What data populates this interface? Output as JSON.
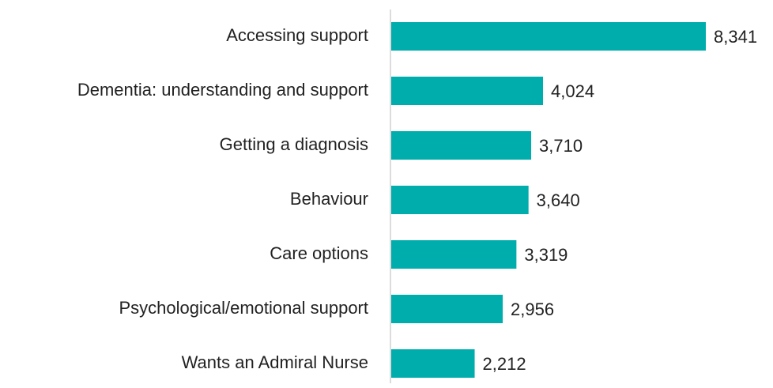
{
  "chart_data": {
    "type": "bar",
    "orientation": "horizontal",
    "categories": [
      "Accessing support",
      "Dementia: understanding and support",
      "Getting a diagnosis",
      "Behaviour",
      "Care options",
      "Psychological/emotional support",
      "Wants an Admiral Nurse"
    ],
    "values": [
      8341,
      4024,
      3710,
      3640,
      3319,
      2956,
      2212
    ],
    "value_labels": [
      "8,341",
      "4,024",
      "3,710",
      "3,640",
      "3,319",
      "2,956",
      "2,212"
    ],
    "color": "#00adad"
  }
}
